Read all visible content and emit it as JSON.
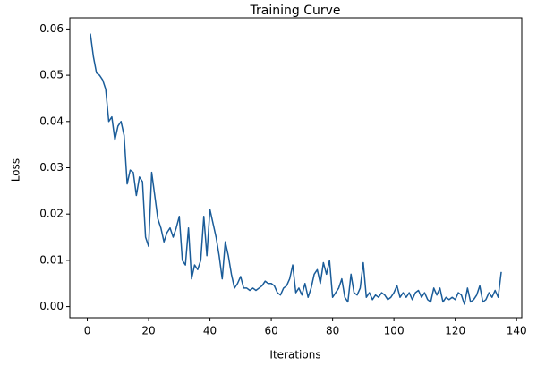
{
  "chart_data": {
    "type": "line",
    "title": "Training Curve",
    "xlabel": "Iterations",
    "ylabel": "Loss",
    "x": [
      1,
      2,
      3,
      4,
      5,
      6,
      7,
      8,
      9,
      10,
      11,
      12,
      13,
      14,
      15,
      16,
      17,
      18,
      19,
      20,
      21,
      22,
      23,
      24,
      25,
      26,
      27,
      28,
      29,
      30,
      31,
      32,
      33,
      34,
      35,
      36,
      37,
      38,
      39,
      40,
      41,
      42,
      43,
      44,
      45,
      46,
      47,
      48,
      49,
      50,
      51,
      52,
      53,
      54,
      55,
      56,
      57,
      58,
      59,
      60,
      61,
      62,
      63,
      64,
      65,
      66,
      67,
      68,
      69,
      70,
      71,
      72,
      73,
      74,
      75,
      76,
      77,
      78,
      79,
      80,
      81,
      82,
      83,
      84,
      85,
      86,
      87,
      88,
      89,
      90,
      91,
      92,
      93,
      94,
      95,
      96,
      97,
      98,
      99,
      100,
      101,
      102,
      103,
      104,
      105,
      106,
      107,
      108,
      109,
      110,
      111,
      112,
      113,
      114,
      115,
      116,
      117,
      118,
      119,
      120,
      121,
      122,
      123,
      124,
      125,
      126,
      127,
      128,
      129,
      130,
      131,
      132,
      133,
      134,
      135
    ],
    "series": [
      {
        "name": "Loss",
        "color": "#1a5c99",
        "values": [
          0.059,
          0.054,
          0.0505,
          0.05,
          0.049,
          0.047,
          0.04,
          0.041,
          0.036,
          0.039,
          0.04,
          0.037,
          0.0265,
          0.0295,
          0.029,
          0.024,
          0.028,
          0.027,
          0.015,
          0.013,
          0.029,
          0.024,
          0.019,
          0.017,
          0.014,
          0.016,
          0.017,
          0.015,
          0.017,
          0.0195,
          0.01,
          0.009,
          0.017,
          0.006,
          0.009,
          0.008,
          0.01,
          0.0195,
          0.011,
          0.021,
          0.018,
          0.015,
          0.011,
          0.006,
          0.014,
          0.011,
          0.007,
          0.004,
          0.005,
          0.0065,
          0.004,
          0.004,
          0.0035,
          0.004,
          0.0035,
          0.004,
          0.0045,
          0.0055,
          0.005,
          0.005,
          0.0045,
          0.003,
          0.0025,
          0.004,
          0.0045,
          0.006,
          0.009,
          0.003,
          0.004,
          0.0025,
          0.005,
          0.002,
          0.004,
          0.007,
          0.008,
          0.005,
          0.0095,
          0.007,
          0.01,
          0.002,
          0.003,
          0.004,
          0.006,
          0.002,
          0.001,
          0.007,
          0.003,
          0.0025,
          0.004,
          0.0095,
          0.002,
          0.003,
          0.0015,
          0.0025,
          0.002,
          0.003,
          0.0025,
          0.0015,
          0.002,
          0.003,
          0.0045,
          0.002,
          0.003,
          0.002,
          0.003,
          0.0015,
          0.003,
          0.0035,
          0.002,
          0.003,
          0.0015,
          0.001,
          0.004,
          0.0025,
          0.004,
          0.001,
          0.002,
          0.0015,
          0.002,
          0.0015,
          0.003,
          0.0025,
          0.0005,
          0.004,
          0.001,
          0.0015,
          0.0025,
          0.0045,
          0.001,
          0.0015,
          0.003,
          0.002,
          0.0035,
          0.002,
          0.0075
        ]
      }
    ],
    "xlim": [
      -5.7,
      141.7
    ],
    "xticks": [
      0,
      20,
      40,
      60,
      80,
      100,
      120,
      140
    ],
    "ylim": [
      -0.0024,
      0.0624
    ],
    "yticks": [
      {
        "value": 0,
        "label": "0.00"
      },
      {
        "value": 0.01,
        "label": "0.01"
      },
      {
        "value": 0.02,
        "label": "0.02"
      },
      {
        "value": 0.03,
        "label": "0.03"
      },
      {
        "value": 0.04,
        "label": "0.04"
      },
      {
        "value": 0.05,
        "label": "0.05"
      },
      {
        "value": 0.06,
        "label": "0.06"
      }
    ]
  }
}
